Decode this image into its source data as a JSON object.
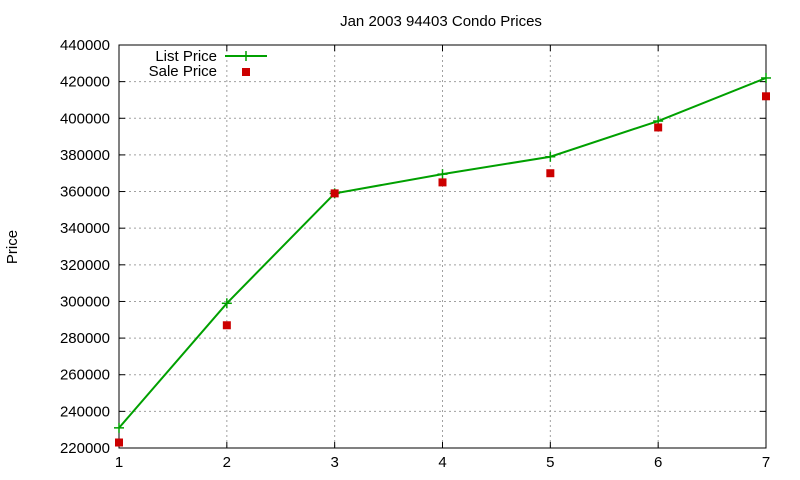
{
  "chart_data": {
    "type": "line",
    "title": "Jan 2003 94403 Condo Prices",
    "xlabel": "",
    "ylabel": "Price",
    "x": [
      1,
      2,
      3,
      4,
      5,
      6,
      7
    ],
    "xlim": [
      1,
      7
    ],
    "ylim": [
      220000,
      440000
    ],
    "xticks": [
      1,
      2,
      3,
      4,
      5,
      6,
      7
    ],
    "yticks": [
      220000,
      240000,
      260000,
      280000,
      300000,
      320000,
      340000,
      360000,
      380000,
      400000,
      420000,
      440000
    ],
    "grid": true,
    "legend_position": "top-left",
    "series": [
      {
        "name": "List Price",
        "style": "linespoints",
        "marker": "plus",
        "color": "#00a000",
        "values": [
          231000,
          299000,
          359000,
          369500,
          379000,
          398500,
          422000
        ]
      },
      {
        "name": "Sale Price",
        "style": "points",
        "marker": "square",
        "color": "#cc0000",
        "values": [
          223000,
          287000,
          359000,
          365000,
          370000,
          395000,
          412000
        ]
      }
    ]
  }
}
